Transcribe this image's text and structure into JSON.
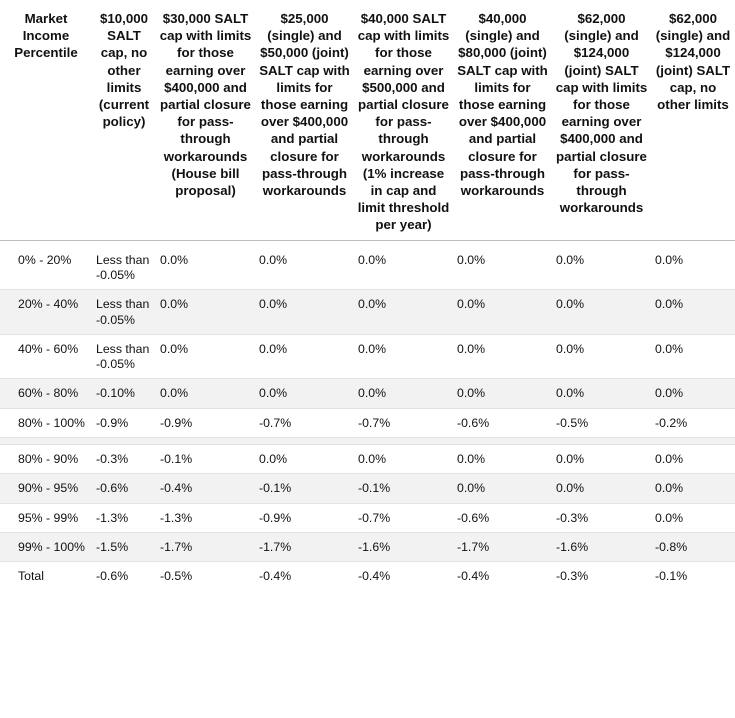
{
  "headers": [
    "Market Income Percentile",
    "$10,000 SALT cap, no other limits (current policy)",
    "$30,000 SALT cap with limits for those earning over $400,000 and partial closure for pass-through workarounds (House bill proposal)",
    "$25,000 (single) and $50,000 (joint) SALT cap with limits for those earning over $400,000 and partial closure for pass-through workarounds",
    "$40,000 SALT cap with limits for those earning over $500,000 and partial closure for pass-through workarounds (1% increase in cap and limit threshold per year)",
    "$40,000 (single) and $80,000 (joint) SALT cap with limits for those earning over $400,000 and partial closure for pass-through workarounds",
    "$62,000 (single) and $124,000 (joint) SALT cap with limits for those earning over $400,000 and partial closure for pass-through workarounds",
    "$62,000 (single) and $124,000 (joint) SALT cap, no other limits"
  ],
  "rows": [
    [
      "0% - 20%",
      "Less than -0.05%",
      "0.0%",
      "0.0%",
      "0.0%",
      "0.0%",
      "0.0%",
      "0.0%"
    ],
    [
      "20% - 40%",
      "Less than -0.05%",
      "0.0%",
      "0.0%",
      "0.0%",
      "0.0%",
      "0.0%",
      "0.0%"
    ],
    [
      "40% - 60%",
      "Less than -0.05%",
      "0.0%",
      "0.0%",
      "0.0%",
      "0.0%",
      "0.0%",
      "0.0%"
    ],
    [
      "60% - 80%",
      "-0.10%",
      "0.0%",
      "0.0%",
      "0.0%",
      "0.0%",
      "0.0%",
      "0.0%"
    ],
    [
      "80% - 100%",
      "-0.9%",
      "-0.9%",
      "-0.7%",
      "-0.7%",
      "-0.6%",
      "-0.5%",
      "-0.2%"
    ],
    [
      "80% - 90%",
      "-0.3%",
      "-0.1%",
      "0.0%",
      "0.0%",
      "0.0%",
      "0.0%",
      "0.0%"
    ],
    [
      "90% - 95%",
      "-0.6%",
      "-0.4%",
      "-0.1%",
      "-0.1%",
      "0.0%",
      "0.0%",
      "0.0%"
    ],
    [
      "95% - 99%",
      "-1.3%",
      "-1.3%",
      "-0.9%",
      "-0.7%",
      "-0.6%",
      "-0.3%",
      "0.0%"
    ],
    [
      "99% - 100%",
      "-1.5%",
      "-1.7%",
      "-1.7%",
      "-1.6%",
      "-1.7%",
      "-1.6%",
      "-0.8%"
    ],
    [
      "Total",
      "-0.6%",
      "-0.5%",
      "-0.4%",
      "-0.4%",
      "-0.4%",
      "-0.3%",
      "-0.1%"
    ]
  ]
}
